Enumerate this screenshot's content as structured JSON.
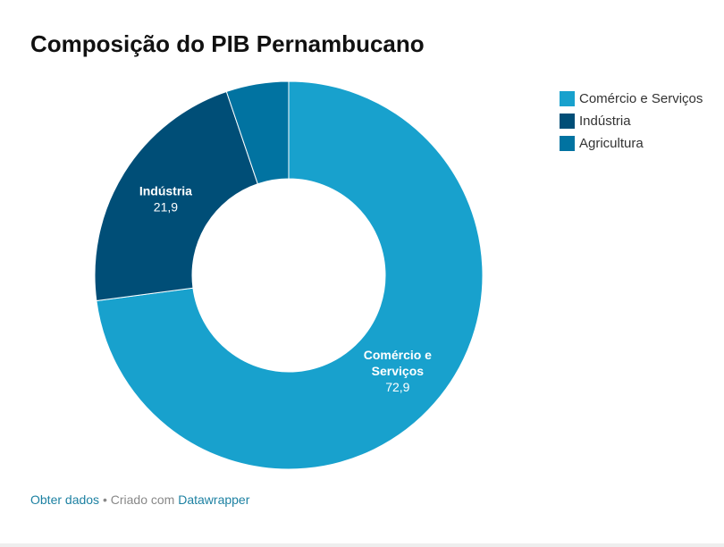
{
  "title": "Composição do PIB Pernambucano",
  "chart_data": {
    "type": "pie",
    "subtype": "donut",
    "title": "Composição do PIB Pernambucano",
    "categories": [
      "Comércio e Serviços",
      "Indústria",
      "Agricultura"
    ],
    "values": [
      72.9,
      21.9,
      5.2
    ],
    "value_labels": [
      "72,9",
      "21,9",
      ""
    ],
    "slice_labels": [
      "Comércio e Serviços",
      "Indústria",
      ""
    ],
    "colors": [
      "#18a1cd",
      "#004e77",
      "#0173a1"
    ],
    "legend_placement": "top-right"
  },
  "legend": [
    {
      "label": "Comércio e Serviços",
      "color": "#18a1cd"
    },
    {
      "label": "Indústria",
      "color": "#004e77"
    },
    {
      "label": "Agricultura",
      "color": "#0173a1"
    }
  ],
  "footer": {
    "get_data": "Obter dados",
    "separator": " • Criado com ",
    "tool": "Datawrapper"
  }
}
